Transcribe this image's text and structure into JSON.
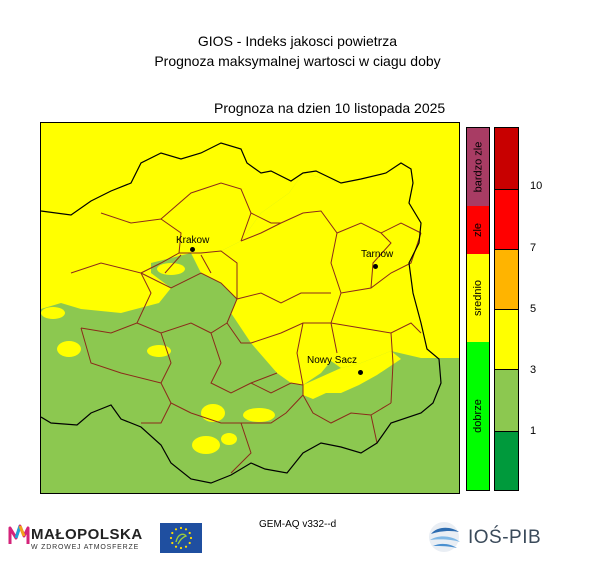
{
  "title_line1": "GIOS - Indeks jakosci powietrza",
  "title_line2": "Prognoza maksymalnej wartosci w ciagu doby",
  "subtitle": "Prognoza na dzien  10 listopada 2025",
  "cities": [
    {
      "name": "Krakow"
    },
    {
      "name": "Tarnow"
    },
    {
      "name": "Nowy Sacz"
    }
  ],
  "categories": [
    {
      "label": "bardzo zle",
      "color": "#a83c64"
    },
    {
      "label": "zle",
      "color": "#ff0000"
    },
    {
      "label": "srednio",
      "color": "#ffff00"
    },
    {
      "label": "dobrze",
      "color": "#00ff00"
    }
  ],
  "scale": [
    {
      "color": "#c80000"
    },
    {
      "color": "#ff0000"
    },
    {
      "color": "#ffb400"
    },
    {
      "color": "#ffff00"
    },
    {
      "color": "#8cc850"
    },
    {
      "color": "#009a3c"
    }
  ],
  "scale_ticks": [
    "10",
    "7",
    "5",
    "3",
    "1"
  ],
  "map_colors": {
    "yellow": "#ffff00",
    "green": "#8cc850",
    "border_outer": "#000000",
    "border_inner": "#8b2a1a"
  },
  "model_label": "GEM-AQ v332--d",
  "logos": {
    "malopolska": "MAŁOPOLSKA",
    "malopolska_sub": "W ZDROWEJ ATMOSFERZE",
    "ios": "IOŚ-PIB"
  }
}
